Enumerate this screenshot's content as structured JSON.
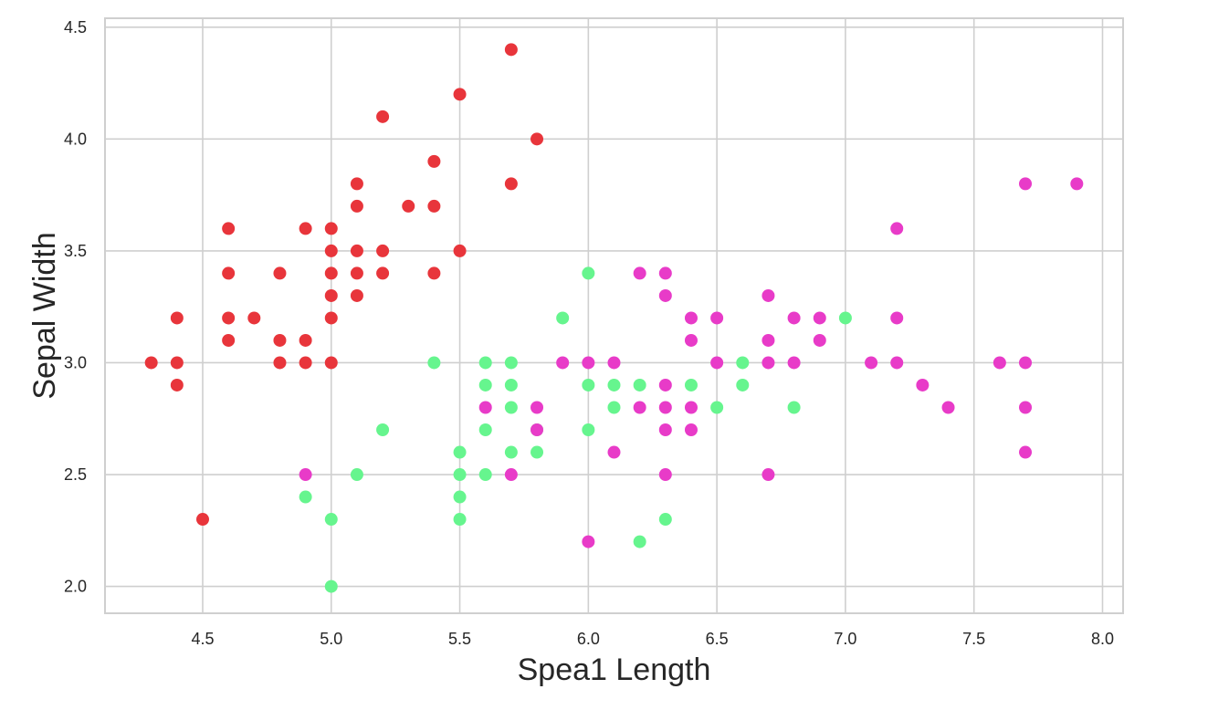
{
  "chart_data": {
    "type": "scatter",
    "title": "",
    "xlabel": "Spea1 Length",
    "ylabel": "Sepal Width",
    "xlim": [
      4.12,
      8.08
    ],
    "ylim": [
      1.88,
      4.54
    ],
    "grid": true,
    "x_ticks": [
      4.5,
      5.0,
      5.5,
      6.0,
      6.5,
      7.0,
      7.5,
      8.0
    ],
    "x_tick_labels": [
      "4.5",
      "5.0",
      "5.5",
      "6.0",
      "6.5",
      "7.0",
      "7.5",
      "8.0"
    ],
    "y_ticks": [
      2.0,
      2.5,
      3.0,
      3.5,
      4.0,
      4.5
    ],
    "y_tick_labels": [
      "2.0",
      "2.5",
      "3.0",
      "3.5",
      "4.0",
      "4.5"
    ],
    "series": [
      {
        "color": "#e8353b",
        "points": [
          [
            4.3,
            3.0
          ],
          [
            4.4,
            3.2
          ],
          [
            4.4,
            3.0
          ],
          [
            4.4,
            2.9
          ],
          [
            4.5,
            2.3
          ],
          [
            4.6,
            3.6
          ],
          [
            4.6,
            3.4
          ],
          [
            4.6,
            3.2
          ],
          [
            4.6,
            3.1
          ],
          [
            4.7,
            3.2
          ],
          [
            4.8,
            3.4
          ],
          [
            4.8,
            3.1
          ],
          [
            4.8,
            3.0
          ],
          [
            4.9,
            3.6
          ],
          [
            4.9,
            3.1
          ],
          [
            4.9,
            3.0
          ],
          [
            5.0,
            3.6
          ],
          [
            5.0,
            3.5
          ],
          [
            5.0,
            3.4
          ],
          [
            5.0,
            3.3
          ],
          [
            5.0,
            3.2
          ],
          [
            5.0,
            3.0
          ],
          [
            5.1,
            3.8
          ],
          [
            5.1,
            3.7
          ],
          [
            5.1,
            3.5
          ],
          [
            5.1,
            3.4
          ],
          [
            5.1,
            3.3
          ],
          [
            5.2,
            4.1
          ],
          [
            5.2,
            3.5
          ],
          [
            5.2,
            3.4
          ],
          [
            5.3,
            3.7
          ],
          [
            5.4,
            3.9
          ],
          [
            5.4,
            3.7
          ],
          [
            5.4,
            3.4
          ],
          [
            5.5,
            4.2
          ],
          [
            5.5,
            3.5
          ],
          [
            5.7,
            4.4
          ],
          [
            5.7,
            3.8
          ],
          [
            5.8,
            4.0
          ]
        ]
      },
      {
        "color": "#66f58e",
        "points": [
          [
            4.9,
            2.4
          ],
          [
            5.0,
            2.3
          ],
          [
            5.0,
            2.0
          ],
          [
            5.1,
            2.5
          ],
          [
            5.2,
            2.7
          ],
          [
            5.4,
            3.0
          ],
          [
            5.5,
            2.6
          ],
          [
            5.5,
            2.5
          ],
          [
            5.5,
            2.4
          ],
          [
            5.5,
            2.3
          ],
          [
            5.6,
            3.0
          ],
          [
            5.6,
            2.9
          ],
          [
            5.6,
            2.7
          ],
          [
            5.6,
            2.5
          ],
          [
            5.7,
            3.0
          ],
          [
            5.7,
            2.9
          ],
          [
            5.7,
            2.8
          ],
          [
            5.7,
            2.6
          ],
          [
            5.8,
            2.7
          ],
          [
            5.8,
            2.6
          ],
          [
            5.9,
            3.2
          ],
          [
            6.0,
            3.4
          ],
          [
            6.0,
            2.9
          ],
          [
            6.0,
            2.7
          ],
          [
            6.1,
            2.9
          ],
          [
            6.1,
            2.8
          ],
          [
            6.2,
            2.9
          ],
          [
            6.2,
            2.2
          ],
          [
            6.3,
            2.3
          ],
          [
            6.4,
            2.9
          ],
          [
            6.5,
            2.8
          ],
          [
            6.6,
            3.0
          ],
          [
            6.6,
            2.9
          ],
          [
            6.8,
            2.8
          ],
          [
            7.0,
            3.2
          ]
        ]
      },
      {
        "color": "#e83bc8",
        "points": [
          [
            4.9,
            2.5
          ],
          [
            5.6,
            2.8
          ],
          [
            5.7,
            2.5
          ],
          [
            5.8,
            2.8
          ],
          [
            5.8,
            2.7
          ],
          [
            5.9,
            3.0
          ],
          [
            6.0,
            3.0
          ],
          [
            6.0,
            2.2
          ],
          [
            6.1,
            3.0
          ],
          [
            6.1,
            2.6
          ],
          [
            6.2,
            3.4
          ],
          [
            6.2,
            2.8
          ],
          [
            6.3,
            3.4
          ],
          [
            6.3,
            3.3
          ],
          [
            6.3,
            2.9
          ],
          [
            6.3,
            2.8
          ],
          [
            6.3,
            2.7
          ],
          [
            6.3,
            2.5
          ],
          [
            6.4,
            3.2
          ],
          [
            6.4,
            3.1
          ],
          [
            6.4,
            2.8
          ],
          [
            6.4,
            2.7
          ],
          [
            6.5,
            3.2
          ],
          [
            6.5,
            3.0
          ],
          [
            6.7,
            3.3
          ],
          [
            6.7,
            3.1
          ],
          [
            6.7,
            3.0
          ],
          [
            6.7,
            2.5
          ],
          [
            6.8,
            3.2
          ],
          [
            6.8,
            3.0
          ],
          [
            6.9,
            3.2
          ],
          [
            6.9,
            3.1
          ],
          [
            7.1,
            3.0
          ],
          [
            7.2,
            3.6
          ],
          [
            7.2,
            3.2
          ],
          [
            7.2,
            3.0
          ],
          [
            7.3,
            2.9
          ],
          [
            7.4,
            2.8
          ],
          [
            7.6,
            3.0
          ],
          [
            7.7,
            3.8
          ],
          [
            7.7,
            3.0
          ],
          [
            7.7,
            2.8
          ],
          [
            7.7,
            2.6
          ],
          [
            7.9,
            3.8
          ]
        ]
      }
    ]
  }
}
